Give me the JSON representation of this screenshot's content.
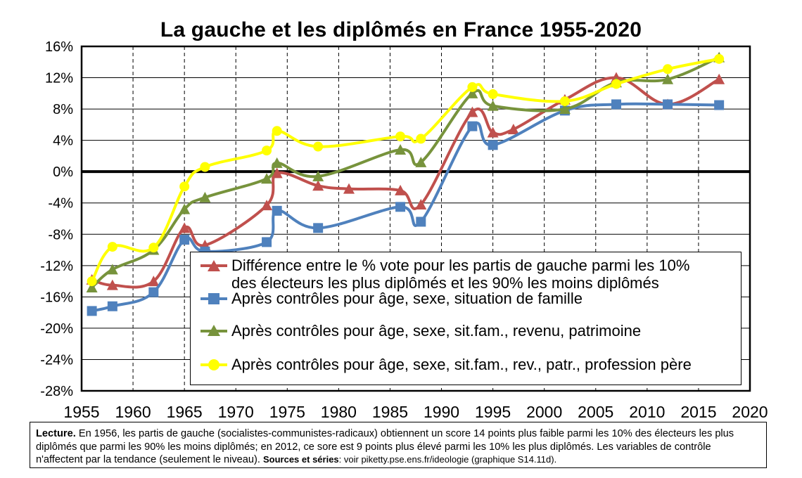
{
  "chart_data": {
    "type": "line",
    "title": "La gauche et les diplômés en France 1955-2020",
    "xlim": [
      1955,
      2020
    ],
    "ylim": [
      -28,
      16
    ],
    "x_ticks": [
      "1955",
      "1960",
      "1965",
      "1970",
      "1975",
      "1980",
      "1985",
      "1990",
      "1995",
      "2000",
      "2005",
      "2010",
      "2015",
      "2020"
    ],
    "y_ticks": [
      {
        "v": 16,
        "label": "16%"
      },
      {
        "v": 12,
        "label": "12%"
      },
      {
        "v": 8,
        "label": "8%"
      },
      {
        "v": 4,
        "label": "4%"
      },
      {
        "v": 0,
        "label": "0%"
      },
      {
        "v": -4,
        "label": "-4%"
      },
      {
        "v": -8,
        "label": "-8%"
      },
      {
        "v": -12,
        "label": "-12%"
      },
      {
        "v": -16,
        "label": "-16%"
      },
      {
        "v": -20,
        "label": "-20%"
      },
      {
        "v": -24,
        "label": "-24%"
      },
      {
        "v": -28,
        "label": "-28%"
      }
    ],
    "grid": true,
    "legend_position": "bottom-right",
    "series": [
      {
        "name": "Différence entre le % vote pour les partis de gauche parmi les 10% des électeurs les plus diplômés et les 90% les moins diplômés",
        "color": "#c0504d",
        "marker": "triangle",
        "x": [
          1956,
          1958,
          1962,
          1965,
          1967,
          1973,
          1974,
          1978,
          1981,
          1986,
          1988,
          1993,
          1995,
          1997,
          2002,
          2007,
          2012,
          2017
        ],
        "y": [
          -13.8,
          -14.5,
          -14.0,
          -7.2,
          -9.4,
          -4.3,
          -0.2,
          -1.8,
          -2.2,
          -2.4,
          -4.2,
          7.6,
          5.0,
          5.4,
          9.2,
          12.0,
          8.6,
          11.8
        ]
      },
      {
        "name": "Après contrôles pour âge, sexe, situation de famille",
        "color": "#4f81bd",
        "marker": "square",
        "x": [
          1956,
          1958,
          1962,
          1965,
          1967,
          1973,
          1974,
          1978,
          1986,
          1988,
          1993,
          1995,
          2002,
          2007,
          2012,
          2017
        ],
        "y": [
          -17.8,
          -17.2,
          -15.4,
          -8.7,
          -10.2,
          -9.0,
          -5.0,
          -7.2,
          -4.5,
          -6.4,
          5.8,
          3.4,
          7.8,
          8.6,
          8.6,
          8.5
        ]
      },
      {
        "name": "Après contrôles pour âge, sexe, sit.fam., revenu, patrimoine",
        "color": "#77933c",
        "marker": "triangle",
        "x": [
          1956,
          1958,
          1962,
          1965,
          1967,
          1973,
          1974,
          1978,
          1986,
          1988,
          1993,
          1995,
          2002,
          2007,
          2012,
          2017
        ],
        "y": [
          -14.8,
          -12.5,
          -10.0,
          -4.8,
          -3.3,
          -0.9,
          1.1,
          -0.6,
          2.8,
          1.2,
          10.0,
          8.4,
          8.0,
          11.4,
          11.8,
          14.6
        ]
      },
      {
        "name": "Après contrôles pour âge, sexe, sit.fam., rev., patr., profession père",
        "color": "#ffff00",
        "marker": "circle",
        "x": [
          1956,
          1958,
          1962,
          1965,
          1967,
          1973,
          1974,
          1978,
          1986,
          1988,
          1993,
          1995,
          2002,
          2007,
          2012,
          2017
        ],
        "y": [
          -14.0,
          -9.6,
          -9.7,
          -1.9,
          0.6,
          2.7,
          5.2,
          3.2,
          4.5,
          4.2,
          10.8,
          9.9,
          9.0,
          11.2,
          13.1,
          14.4
        ]
      }
    ]
  },
  "legend": {
    "items": [
      {
        "line1": "Différence entre le % vote pour les partis de gauche parmi les 10%",
        "line2": "des électeurs les plus diplômés et les 90% les moins diplômés"
      },
      {
        "line1": "Après contrôles pour âge, sexe, situation de famille"
      },
      {
        "line1": "Après contrôles pour âge, sexe, sit.fam., revenu, patrimoine"
      },
      {
        "line1": "Après contrôles pour âge, sexe, sit.fam., rev., patr., profession père"
      }
    ]
  },
  "note": {
    "lead": "Lecture.",
    "text": " En 1956, les partis de gauche (socialistes-communistes-radicaux) obtiennent un score 14 points plus faible parmi les 10% des électeurs les plus diplômés que parmi les 90% les moins diplômés; en 2012, ce sore est 9 points plus élevé parmi les 10% les plus diplômés. Les variables de contrôle n'affectent par la tendance (seulement le niveau). ",
    "sources_lead": "Sources et séries",
    "sources_text": ": voir piketty.pse.ens.fr/ideologie (graphique S14.11d)."
  }
}
